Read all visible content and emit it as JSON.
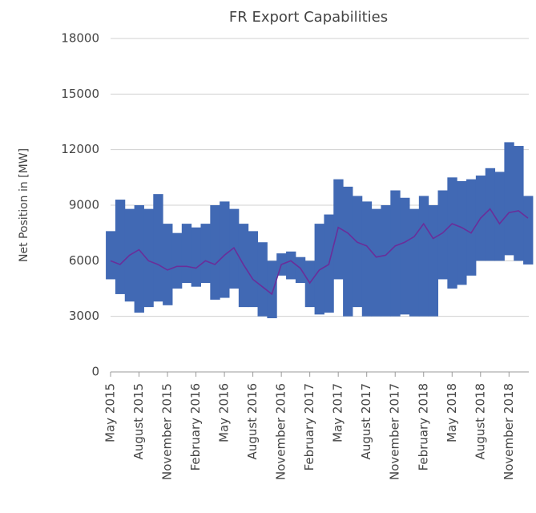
{
  "chart_data": {
    "type": "line",
    "title": "FR Export Capabilities",
    "y_label": "Net Position in [MW]",
    "categories": [
      "May 2015",
      null,
      null,
      "August 2015",
      null,
      null,
      "November 2015",
      null,
      null,
      "February 2016",
      null,
      null,
      "May 2016",
      null,
      null,
      "August 2016",
      null,
      null,
      "November 2016",
      null,
      null,
      "February 2017",
      null,
      null,
      "May 2017",
      null,
      null,
      "August 2017",
      null,
      null,
      "November 2017",
      null,
      null,
      "February 2018",
      null,
      null,
      "May 2018",
      null,
      null,
      "August 2018",
      null,
      null,
      "November 2018",
      null,
      null
    ],
    "series": [
      {
        "color": "#4169b4",
        "low": [
          5000,
          4200,
          3800,
          3200,
          3500,
          3800,
          3600,
          4500,
          4800,
          4600,
          4800,
          3900,
          4000,
          4500,
          3500,
          3500,
          3000,
          2900,
          5200,
          5000,
          4800,
          3500,
          3100,
          3200,
          5000,
          3000,
          3500,
          3000,
          3000,
          3000,
          3000,
          3100,
          3000,
          3000,
          3000,
          5000,
          4500,
          4700,
          5200,
          6000,
          6000,
          6000,
          6300,
          6000,
          5800
        ],
        "high": [
          7600,
          9300,
          8800,
          9000,
          8800,
          9600,
          8000,
          7500,
          8000,
          7800,
          8000,
          9000,
          9200,
          8800,
          8000,
          7600,
          7000,
          6000,
          6400,
          6500,
          6200,
          6000,
          8000,
          8500,
          10400,
          10000,
          9500,
          9200,
          8800,
          9000,
          9800,
          9400,
          8800,
          9500,
          9000,
          9800,
          10500,
          10300,
          10400,
          10600,
          11000,
          10800,
          12400,
          12200,
          9500
        ]
      },
      {
        "color": "#6a2e9a",
        "values": [
          6000,
          5800,
          6300,
          6600,
          6000,
          5800,
          5500,
          5700,
          5700,
          5600,
          6000,
          5800,
          6300,
          6700,
          5800,
          5000,
          4600,
          4200,
          5800,
          6000,
          5600,
          4800,
          5500,
          5800,
          7800,
          7500,
          7000,
          6800,
          6200,
          6300,
          6800,
          7000,
          7300,
          8000,
          7200,
          7500,
          8000,
          7800,
          7500,
          8300,
          8800,
          8000,
          8600,
          8700,
          8300
        ]
      }
    ],
    "ylim": [
      0,
      18000
    ],
    "yticks": [
      0,
      3000,
      6000,
      9000,
      12000,
      15000,
      18000
    ],
    "grid": true
  }
}
